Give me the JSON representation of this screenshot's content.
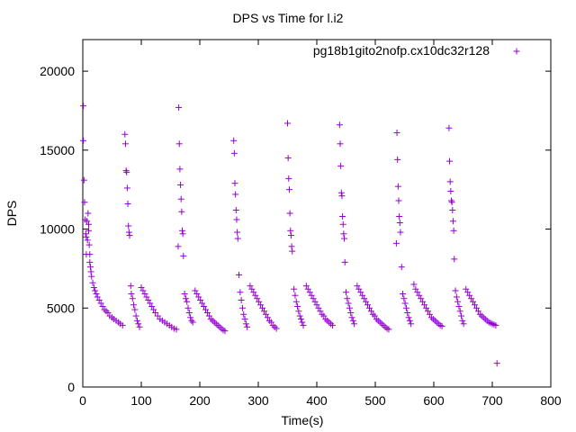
{
  "chart_data": {
    "type": "scatter",
    "title": "DPS vs Time for l.i2",
    "xlabel": "Time(s)",
    "ylabel": "DPS",
    "xlim": [
      0,
      800
    ],
    "ylim": [
      0,
      22000
    ],
    "xticks": [
      0,
      100,
      200,
      300,
      400,
      500,
      600,
      700,
      800
    ],
    "yticks": [
      0,
      5000,
      10000,
      15000,
      20000
    ],
    "grid": false,
    "legend_position": "top-right",
    "marker": "plus",
    "series": [
      {
        "name": "pg18b1gito2nofp.cx10dc32r128",
        "color": "#9400D3",
        "points": [
          [
            1,
            17800
          ],
          [
            1,
            15600
          ],
          [
            2,
            13100
          ],
          [
            3,
            11700
          ],
          [
            4,
            10600
          ],
          [
            5,
            9700
          ],
          [
            6,
            9500
          ],
          [
            6,
            8400
          ],
          [
            7,
            10500
          ],
          [
            8,
            9300
          ],
          [
            9,
            11000
          ],
          [
            10,
            10300
          ],
          [
            10,
            9900
          ],
          [
            11,
            9000
          ],
          [
            12,
            8400
          ],
          [
            12,
            7900
          ],
          [
            13,
            7600
          ],
          [
            14,
            7300
          ],
          [
            15,
            7000
          ],
          [
            17,
            6600
          ],
          [
            19,
            6300
          ],
          [
            21,
            6100
          ],
          [
            23,
            5900
          ],
          [
            25,
            5700
          ],
          [
            28,
            5500
          ],
          [
            31,
            5300
          ],
          [
            34,
            5100
          ],
          [
            37,
            4900
          ],
          [
            40,
            4800
          ],
          [
            43,
            4700
          ],
          [
            46,
            4500
          ],
          [
            50,
            4400
          ],
          [
            53,
            4300
          ],
          [
            57,
            4200
          ],
          [
            61,
            4100
          ],
          [
            64,
            4000
          ],
          [
            68,
            3900
          ],
          [
            72,
            16000
          ],
          [
            73,
            15400
          ],
          [
            74,
            13700
          ],
          [
            75,
            13600
          ],
          [
            76,
            12600
          ],
          [
            77,
            11600
          ],
          [
            78,
            10200
          ],
          [
            79,
            9800
          ],
          [
            80,
            9600
          ],
          [
            82,
            6400
          ],
          [
            83,
            5900
          ],
          [
            85,
            5600
          ],
          [
            87,
            5200
          ],
          [
            89,
            4900
          ],
          [
            91,
            4500
          ],
          [
            93,
            4200
          ],
          [
            95,
            4000
          ],
          [
            97,
            3800
          ],
          [
            100,
            6300
          ],
          [
            103,
            6100
          ],
          [
            106,
            5900
          ],
          [
            109,
            5700
          ],
          [
            112,
            5500
          ],
          [
            115,
            5300
          ],
          [
            118,
            5100
          ],
          [
            121,
            4900
          ],
          [
            124,
            4700
          ],
          [
            128,
            4500
          ],
          [
            132,
            4300
          ],
          [
            136,
            4200
          ],
          [
            140,
            4100
          ],
          [
            144,
            4000
          ],
          [
            148,
            3900
          ],
          [
            152,
            3800
          ],
          [
            156,
            3700
          ],
          [
            160,
            3650
          ],
          [
            164,
            17700
          ],
          [
            165,
            15400
          ],
          [
            166,
            13800
          ],
          [
            167,
            12800
          ],
          [
            168,
            11900
          ],
          [
            169,
            11100
          ],
          [
            170,
            9900
          ],
          [
            171,
            9700
          ],
          [
            163,
            8900
          ],
          [
            172,
            8300
          ],
          [
            174,
            5900
          ],
          [
            176,
            5600
          ],
          [
            178,
            5400
          ],
          [
            180,
            5000
          ],
          [
            182,
            4700
          ],
          [
            184,
            4400
          ],
          [
            186,
            4200
          ],
          [
            188,
            4100
          ],
          [
            192,
            6100
          ],
          [
            195,
            5900
          ],
          [
            198,
            5700
          ],
          [
            201,
            5500
          ],
          [
            204,
            5300
          ],
          [
            207,
            5100
          ],
          [
            210,
            4900
          ],
          [
            213,
            4700
          ],
          [
            216,
            4500
          ],
          [
            219,
            4300
          ],
          [
            222,
            4200
          ],
          [
            225,
            4100
          ],
          [
            228,
            4000
          ],
          [
            231,
            3900
          ],
          [
            234,
            3800
          ],
          [
            237,
            3700
          ],
          [
            240,
            3600
          ],
          [
            243,
            3550
          ],
          [
            258,
            15600
          ],
          [
            259,
            14800
          ],
          [
            260,
            12900
          ],
          [
            261,
            12200
          ],
          [
            262,
            11200
          ],
          [
            263,
            10600
          ],
          [
            264,
            9800
          ],
          [
            265,
            9400
          ],
          [
            267,
            7100
          ],
          [
            269,
            6000
          ],
          [
            271,
            5500
          ],
          [
            273,
            5000
          ],
          [
            275,
            4600
          ],
          [
            277,
            4300
          ],
          [
            279,
            4000
          ],
          [
            281,
            3800
          ],
          [
            286,
            6400
          ],
          [
            289,
            6200
          ],
          [
            292,
            6000
          ],
          [
            295,
            5800
          ],
          [
            298,
            5600
          ],
          [
            301,
            5400
          ],
          [
            304,
            5200
          ],
          [
            307,
            5000
          ],
          [
            310,
            4800
          ],
          [
            313,
            4600
          ],
          [
            316,
            4400
          ],
          [
            319,
            4200
          ],
          [
            322,
            4100
          ],
          [
            325,
            3900
          ],
          [
            328,
            3800
          ],
          [
            331,
            3700
          ],
          [
            350,
            16700
          ],
          [
            351,
            14500
          ],
          [
            352,
            13200
          ],
          [
            353,
            12500
          ],
          [
            354,
            11000
          ],
          [
            355,
            9900
          ],
          [
            356,
            9600
          ],
          [
            357,
            8900
          ],
          [
            358,
            8600
          ],
          [
            361,
            6200
          ],
          [
            363,
            5800
          ],
          [
            365,
            5400
          ],
          [
            367,
            5100
          ],
          [
            369,
            4800
          ],
          [
            371,
            4500
          ],
          [
            373,
            4300
          ],
          [
            375,
            4100
          ],
          [
            377,
            3900
          ],
          [
            382,
            6400
          ],
          [
            385,
            6200
          ],
          [
            388,
            6000
          ],
          [
            391,
            5800
          ],
          [
            394,
            5600
          ],
          [
            397,
            5400
          ],
          [
            400,
            5200
          ],
          [
            403,
            5000
          ],
          [
            406,
            4800
          ],
          [
            409,
            4600
          ],
          [
            412,
            4500
          ],
          [
            415,
            4300
          ],
          [
            418,
            4200
          ],
          [
            421,
            4100
          ],
          [
            424,
            4000
          ],
          [
            427,
            3900
          ],
          [
            439,
            16600
          ],
          [
            440,
            15400
          ],
          [
            441,
            14000
          ],
          [
            442,
            12300
          ],
          [
            443,
            12100
          ],
          [
            444,
            10800
          ],
          [
            445,
            10300
          ],
          [
            446,
            9700
          ],
          [
            447,
            9400
          ],
          [
            448,
            7900
          ],
          [
            450,
            6000
          ],
          [
            452,
            5600
          ],
          [
            454,
            5300
          ],
          [
            456,
            5000
          ],
          [
            458,
            4700
          ],
          [
            460,
            4400
          ],
          [
            462,
            4200
          ],
          [
            464,
            4000
          ],
          [
            469,
            6400
          ],
          [
            472,
            6200
          ],
          [
            475,
            6000
          ],
          [
            478,
            5800
          ],
          [
            481,
            5600
          ],
          [
            484,
            5400
          ],
          [
            487,
            5200
          ],
          [
            490,
            5000
          ],
          [
            493,
            4800
          ],
          [
            496,
            4600
          ],
          [
            499,
            4500
          ],
          [
            502,
            4300
          ],
          [
            505,
            4200
          ],
          [
            508,
            4100
          ],
          [
            511,
            4000
          ],
          [
            514,
            3900
          ],
          [
            517,
            3800
          ],
          [
            520,
            3700
          ],
          [
            523,
            3650
          ],
          [
            537,
            16100
          ],
          [
            538,
            14400
          ],
          [
            539,
            12700
          ],
          [
            540,
            11800
          ],
          [
            541,
            10800
          ],
          [
            542,
            10400
          ],
          [
            543,
            9800
          ],
          [
            536,
            9100
          ],
          [
            545,
            7600
          ],
          [
            547,
            5900
          ],
          [
            549,
            5600
          ],
          [
            551,
            5300
          ],
          [
            553,
            5000
          ],
          [
            555,
            4700
          ],
          [
            557,
            4400
          ],
          [
            559,
            4200
          ],
          [
            561,
            4000
          ],
          [
            566,
            6500
          ],
          [
            569,
            6200
          ],
          [
            572,
            6000
          ],
          [
            575,
            5800
          ],
          [
            578,
            5600
          ],
          [
            581,
            5400
          ],
          [
            584,
            5200
          ],
          [
            587,
            5000
          ],
          [
            590,
            4800
          ],
          [
            593,
            4600
          ],
          [
            596,
            4400
          ],
          [
            599,
            4300
          ],
          [
            602,
            4200
          ],
          [
            605,
            4100
          ],
          [
            608,
            4000
          ],
          [
            611,
            3900
          ],
          [
            614,
            3850
          ],
          [
            626,
            16400
          ],
          [
            627,
            14300
          ],
          [
            628,
            13000
          ],
          [
            629,
            12400
          ],
          [
            630,
            11800
          ],
          [
            631,
            11700
          ],
          [
            632,
            11200
          ],
          [
            633,
            10500
          ],
          [
            634,
            9900
          ],
          [
            635,
            8100
          ],
          [
            637,
            6100
          ],
          [
            639,
            5700
          ],
          [
            641,
            5400
          ],
          [
            643,
            5100
          ],
          [
            645,
            4800
          ],
          [
            647,
            4500
          ],
          [
            649,
            4200
          ],
          [
            651,
            4000
          ],
          [
            655,
            6200
          ],
          [
            658,
            6000
          ],
          [
            661,
            5800
          ],
          [
            664,
            5600
          ],
          [
            667,
            5400
          ],
          [
            670,
            5200
          ],
          [
            673,
            5000
          ],
          [
            676,
            4800
          ],
          [
            679,
            4600
          ],
          [
            682,
            4500
          ],
          [
            685,
            4400
          ],
          [
            688,
            4300
          ],
          [
            691,
            4200
          ],
          [
            694,
            4100
          ],
          [
            697,
            4050
          ],
          [
            700,
            4000
          ],
          [
            703,
            3950
          ],
          [
            706,
            3900
          ],
          [
            708,
            1500
          ]
        ]
      }
    ]
  }
}
